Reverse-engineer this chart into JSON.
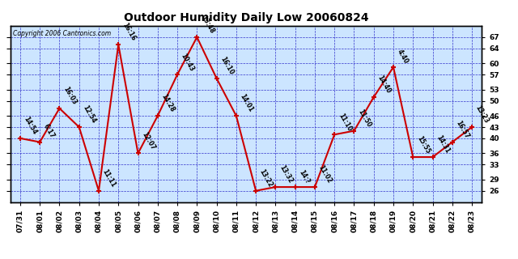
{
  "title": "Outdoor Humidity Daily Low 20060824",
  "copyright": "Copyright 2006 Cantronics.com",
  "bg_color": "#cce5ff",
  "line_color": "#cc0000",
  "grid_color": "#3333cc",
  "x_labels": [
    "07/31",
    "08/01",
    "08/02",
    "08/03",
    "08/04",
    "08/05",
    "08/06",
    "08/07",
    "08/08",
    "08/09",
    "08/10",
    "08/11",
    "08/12",
    "08/13",
    "08/14",
    "08/15",
    "08/16",
    "08/17",
    "08/18",
    "08/19",
    "08/20",
    "08/21",
    "08/22",
    "08/23"
  ],
  "y_values": [
    40,
    39,
    48,
    43,
    26,
    65,
    36,
    46,
    57,
    67,
    56,
    46,
    26,
    27,
    27,
    27,
    41,
    42,
    51,
    59,
    35,
    35,
    39,
    43
  ],
  "point_labels": [
    "14:54",
    "6:17",
    "16:03",
    "12:54",
    "11:11",
    "16:16",
    "12:07",
    "14:28",
    "10:43",
    "13:48",
    "16:10",
    "14:01",
    "13:22",
    "13:32",
    "14:?",
    "11:02",
    "11:10",
    "11:50",
    "14:40",
    "4:40",
    "15:55",
    "14:31",
    "16:57",
    "13:23"
  ],
  "ylim_low": 23,
  "ylim_high": 70,
  "yticks": [
    26,
    29,
    33,
    36,
    40,
    43,
    46,
    50,
    53,
    57,
    60,
    64,
    67
  ],
  "title_fontsize": 10,
  "annot_fontsize": 5.5,
  "tick_fontsize": 6.5
}
